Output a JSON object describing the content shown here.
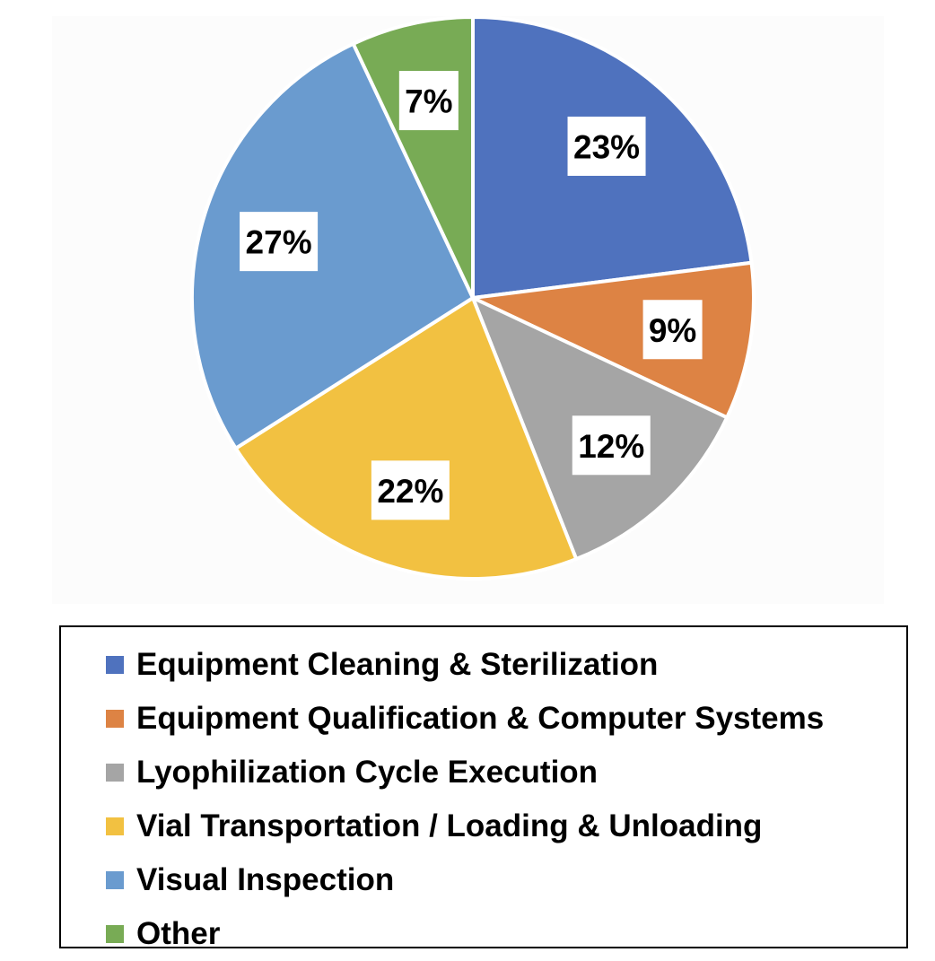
{
  "chart_data": {
    "type": "pie",
    "title": "",
    "categories": [
      "Equipment Cleaning & Sterilization",
      "Equipment Qualification & Computer Systems",
      "Lyophilization Cycle Execution",
      "Vial Transportation / Loading & Unloading",
      "Visual Inspection",
      "Other"
    ],
    "values": [
      23,
      9,
      12,
      22,
      27,
      7
    ],
    "value_labels": [
      "23%",
      "9%",
      "12%",
      "22%",
      "27%",
      "7%"
    ],
    "colors": [
      "#4f72be",
      "#dd8344",
      "#a5a5a5",
      "#f2c141",
      "#6a9bcf",
      "#78ab55"
    ],
    "legend_position": "bottom"
  }
}
